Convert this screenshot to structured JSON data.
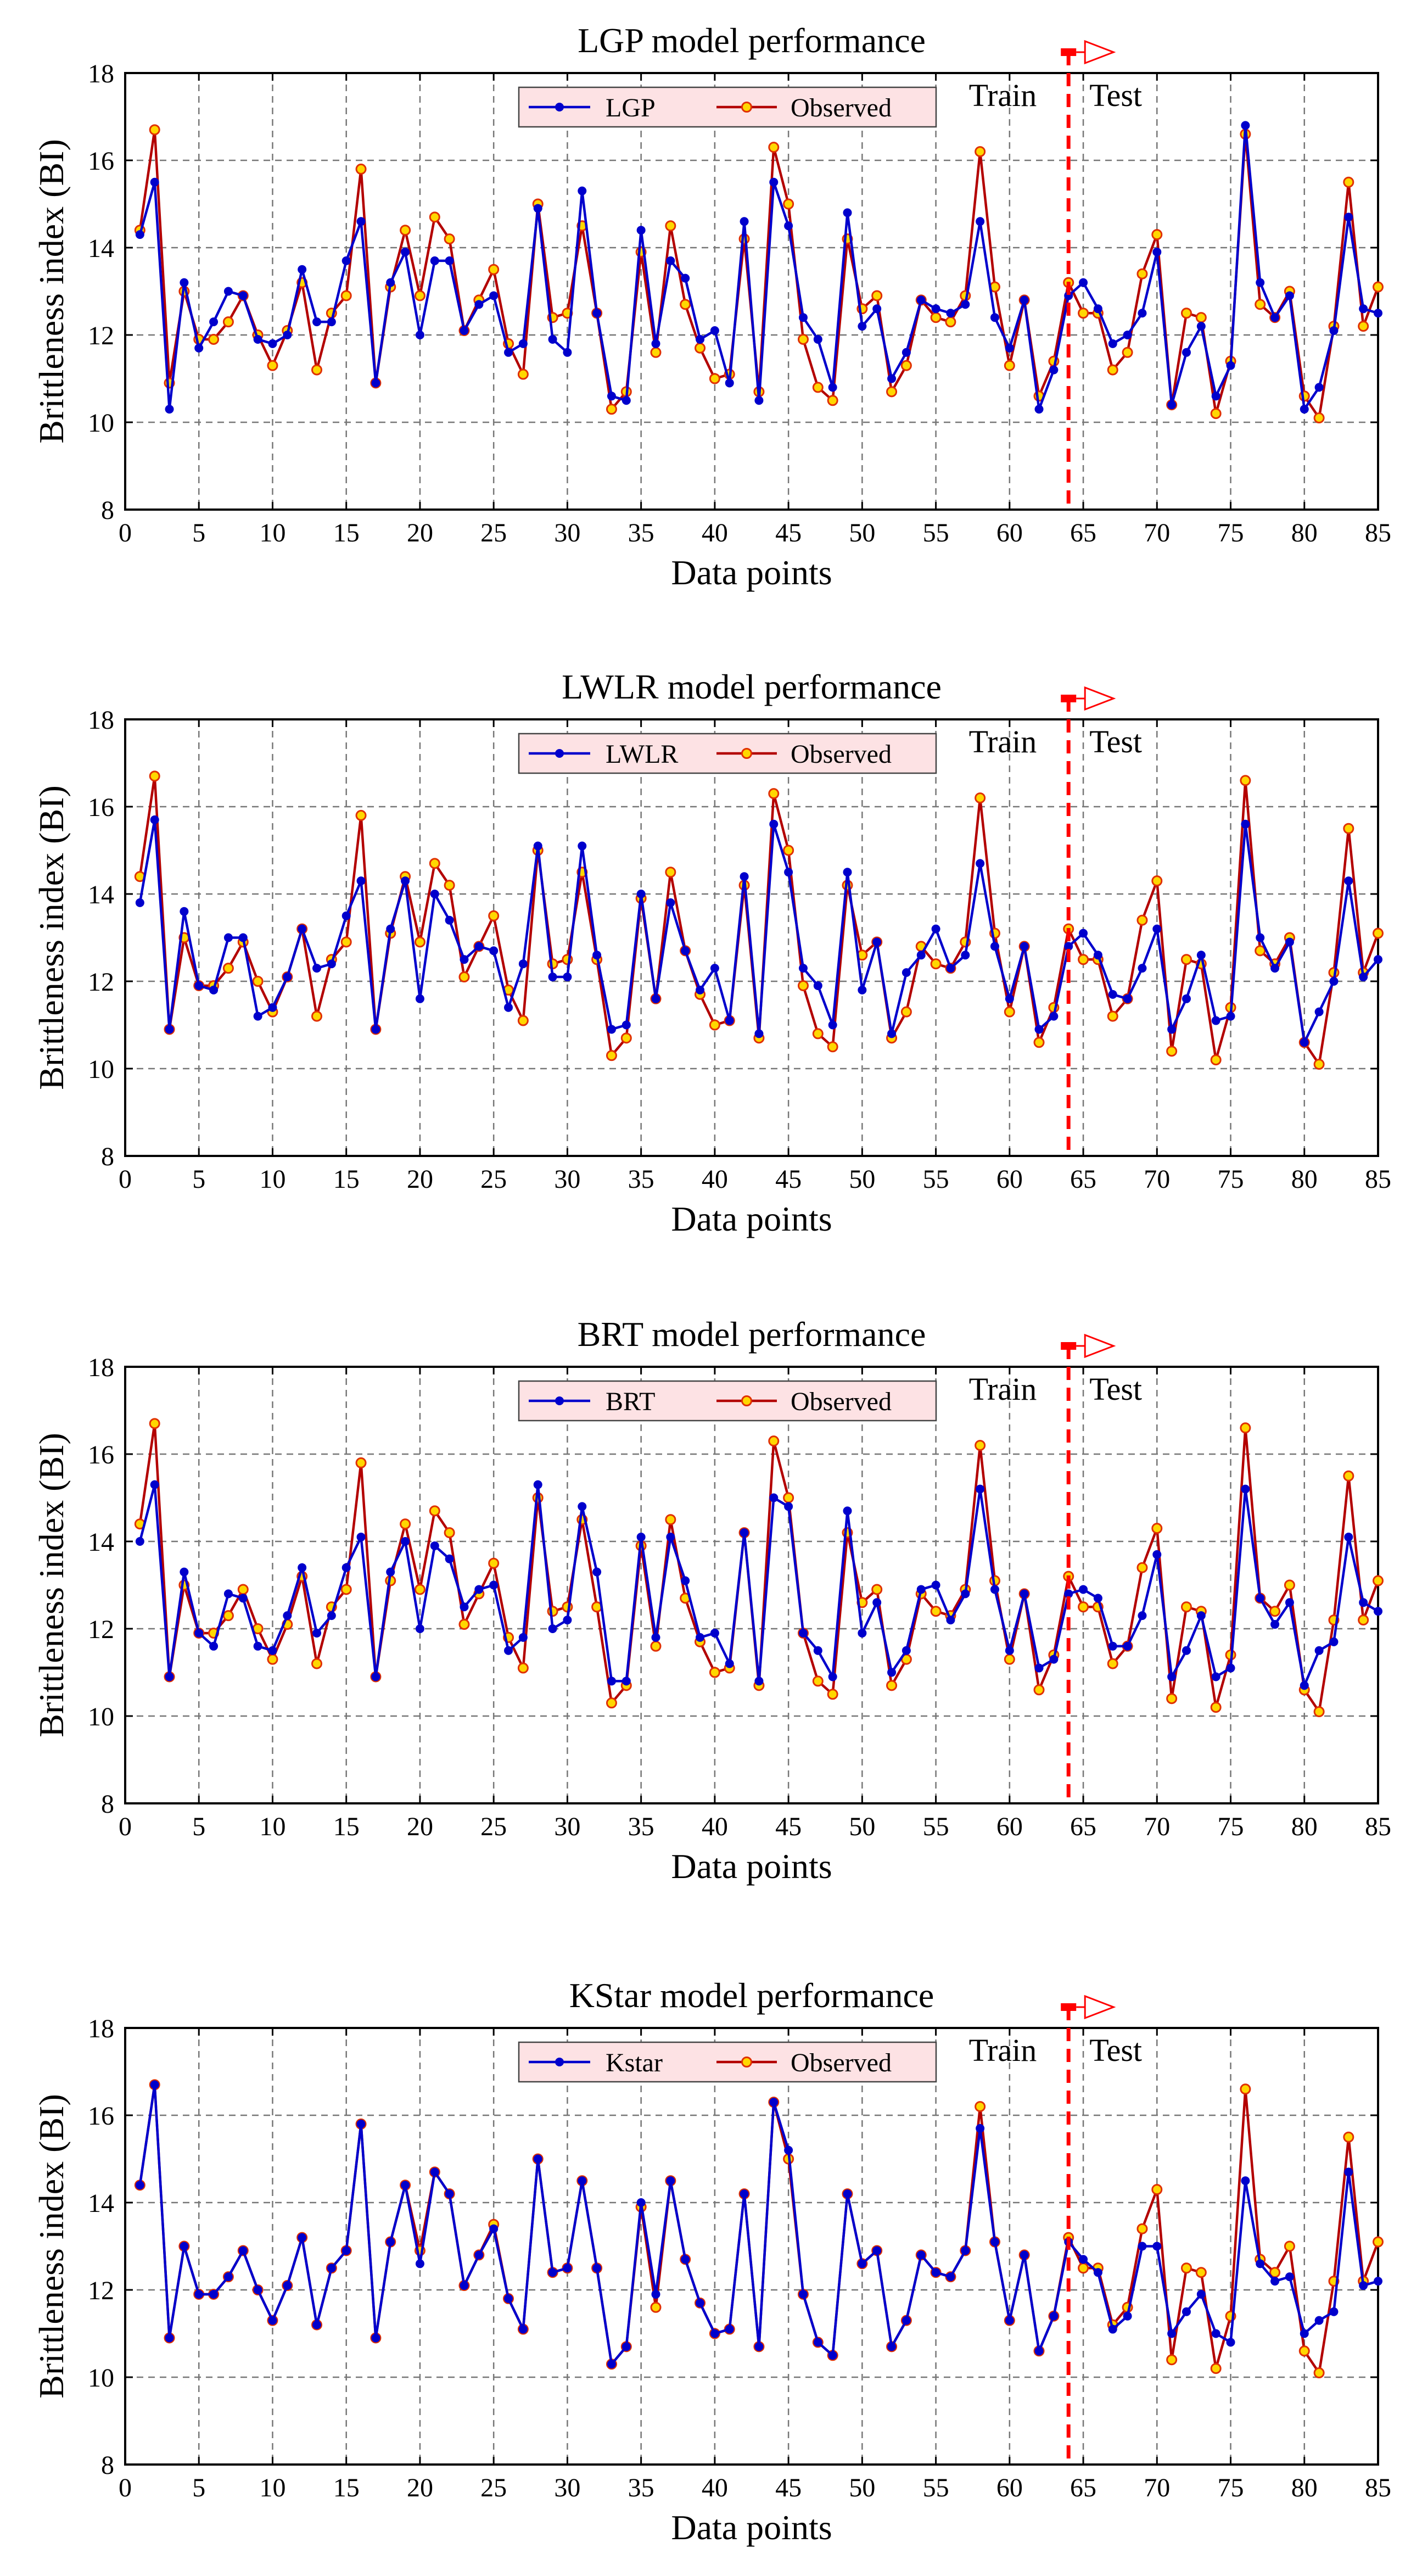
{
  "chart_data": [
    {
      "type": "line",
      "title": "LGP model performance",
      "xlabel": "Data points",
      "ylabel": "Brittleness index (BI)",
      "xlim": [
        0,
        85
      ],
      "ylim": [
        8,
        18
      ],
      "x_ticks": [
        0,
        5,
        10,
        15,
        20,
        25,
        30,
        35,
        40,
        45,
        50,
        55,
        60,
        65,
        70,
        75,
        80,
        85
      ],
      "y_ticks": [
        8,
        10,
        12,
        14,
        16,
        18
      ],
      "grid": true,
      "legend_position": "top-center",
      "split_x": 64,
      "train_label": "Train",
      "test_label": "Test",
      "series": [
        {
          "name": "LGP",
          "color": "#0000cc",
          "values": [
            14.3,
            15.5,
            10.3,
            13.2,
            11.7,
            12.3,
            13.0,
            12.9,
            11.9,
            11.8,
            12.0,
            13.5,
            12.3,
            12.3,
            13.7,
            14.6,
            10.9,
            13.2,
            13.9,
            12.0,
            13.7,
            13.7,
            12.1,
            12.7,
            12.9,
            11.6,
            11.8,
            14.9,
            11.9,
            11.6,
            15.3,
            12.5,
            10.6,
            10.5,
            14.4,
            11.8,
            13.7,
            13.3,
            11.9,
            12.1,
            10.9,
            14.6,
            10.5,
            15.5,
            14.5,
            12.4,
            11.9,
            10.8,
            14.8,
            12.2,
            12.6,
            11.0,
            11.6,
            12.8,
            12.6,
            12.5,
            12.7,
            14.6,
            12.4,
            11.7,
            12.8,
            10.3,
            11.2,
            12.9,
            13.2,
            12.6,
            11.8,
            12.0,
            12.5,
            13.9,
            10.4,
            11.6,
            12.2,
            10.6,
            11.3,
            16.8,
            13.2,
            12.4,
            12.9,
            10.3,
            10.8,
            12.1,
            14.7,
            12.6,
            12.5
          ]
        },
        {
          "name": "Observed",
          "color": "#b30000",
          "values": [
            14.4,
            16.7,
            10.9,
            13.0,
            11.9,
            11.9,
            12.3,
            12.9,
            12.0,
            11.3,
            12.1,
            13.2,
            11.2,
            12.5,
            12.9,
            15.8,
            10.9,
            13.1,
            14.4,
            12.9,
            14.7,
            14.2,
            12.1,
            12.8,
            13.5,
            11.8,
            11.1,
            15.0,
            12.4,
            12.5,
            14.5,
            12.5,
            10.3,
            10.7,
            13.9,
            11.6,
            14.5,
            12.7,
            11.7,
            11.0,
            11.1,
            14.2,
            10.7,
            16.3,
            15.0,
            11.9,
            10.8,
            10.5,
            14.2,
            12.6,
            12.9,
            10.7,
            11.3,
            12.8,
            12.4,
            12.3,
            12.9,
            16.2,
            13.1,
            11.3,
            12.8,
            10.6,
            11.4,
            13.2,
            12.5,
            12.5,
            11.2,
            11.6,
            13.4,
            14.3,
            10.4,
            12.5,
            12.4,
            10.2,
            11.4,
            16.6,
            12.7,
            12.4,
            13.0,
            10.6,
            10.1,
            12.2,
            15.5,
            12.2,
            13.1
          ]
        }
      ]
    },
    {
      "type": "line",
      "title": "LWLR model performance",
      "xlabel": "Data points",
      "ylabel": "Brittleness index (BI)",
      "xlim": [
        0,
        85
      ],
      "ylim": [
        8,
        18
      ],
      "x_ticks": [
        0,
        5,
        10,
        15,
        20,
        25,
        30,
        35,
        40,
        45,
        50,
        55,
        60,
        65,
        70,
        75,
        80,
        85
      ],
      "y_ticks": [
        8,
        10,
        12,
        14,
        16,
        18
      ],
      "grid": true,
      "legend_position": "top-center",
      "split_x": 64,
      "train_label": "Train",
      "test_label": "Test",
      "series": [
        {
          "name": "LWLR",
          "color": "#0000cc",
          "values": [
            13.8,
            15.7,
            10.9,
            13.6,
            11.9,
            11.8,
            13.0,
            13.0,
            11.2,
            11.4,
            12.1,
            13.2,
            12.3,
            12.4,
            13.5,
            14.3,
            10.9,
            13.2,
            14.3,
            11.6,
            14.0,
            13.4,
            12.5,
            12.8,
            12.7,
            11.4,
            12.4,
            15.1,
            12.1,
            12.1,
            15.1,
            12.6,
            10.9,
            11.0,
            14.0,
            11.6,
            13.8,
            12.7,
            11.8,
            12.3,
            11.1,
            14.4,
            10.8,
            15.6,
            14.5,
            12.3,
            11.9,
            11.0,
            14.5,
            11.8,
            12.9,
            10.8,
            12.2,
            12.6,
            13.2,
            12.3,
            12.6,
            14.7,
            12.8,
            11.6,
            12.8,
            10.9,
            11.2,
            12.8,
            13.1,
            12.6,
            11.7,
            11.6,
            12.3,
            13.2,
            10.9,
            11.6,
            12.6,
            11.1,
            11.2,
            15.6,
            13.0,
            12.3,
            12.9,
            10.6,
            11.3,
            12.0,
            14.3,
            12.1,
            12.5
          ]
        },
        {
          "name": "Observed",
          "color": "#b30000",
          "values": [
            14.4,
            16.7,
            10.9,
            13.0,
            11.9,
            11.9,
            12.3,
            12.9,
            12.0,
            11.3,
            12.1,
            13.2,
            11.2,
            12.5,
            12.9,
            15.8,
            10.9,
            13.1,
            14.4,
            12.9,
            14.7,
            14.2,
            12.1,
            12.8,
            13.5,
            11.8,
            11.1,
            15.0,
            12.4,
            12.5,
            14.5,
            12.5,
            10.3,
            10.7,
            13.9,
            11.6,
            14.5,
            12.7,
            11.7,
            11.0,
            11.1,
            14.2,
            10.7,
            16.3,
            15.0,
            11.9,
            10.8,
            10.5,
            14.2,
            12.6,
            12.9,
            10.7,
            11.3,
            12.8,
            12.4,
            12.3,
            12.9,
            16.2,
            13.1,
            11.3,
            12.8,
            10.6,
            11.4,
            13.2,
            12.5,
            12.5,
            11.2,
            11.6,
            13.4,
            14.3,
            10.4,
            12.5,
            12.4,
            10.2,
            11.4,
            16.6,
            12.7,
            12.4,
            13.0,
            10.6,
            10.1,
            12.2,
            15.5,
            12.2,
            13.1
          ]
        }
      ]
    },
    {
      "type": "line",
      "title": "BRT model performance",
      "xlabel": "Data points",
      "ylabel": "Brittleness index (BI)",
      "xlim": [
        0,
        85
      ],
      "ylim": [
        8,
        18
      ],
      "x_ticks": [
        0,
        5,
        10,
        15,
        20,
        25,
        30,
        35,
        40,
        45,
        50,
        55,
        60,
        65,
        70,
        75,
        80,
        85
      ],
      "y_ticks": [
        8,
        10,
        12,
        14,
        16,
        18
      ],
      "grid": true,
      "legend_position": "top-center",
      "split_x": 64,
      "train_label": "Train",
      "test_label": "Test",
      "series": [
        {
          "name": "BRT",
          "color": "#0000cc",
          "values": [
            14.0,
            15.3,
            10.9,
            13.3,
            11.9,
            11.6,
            12.8,
            12.7,
            11.6,
            11.5,
            12.3,
            13.4,
            11.9,
            12.3,
            13.4,
            14.1,
            10.9,
            13.3,
            14.0,
            12.0,
            13.9,
            13.6,
            12.5,
            12.9,
            13.0,
            11.5,
            11.8,
            15.3,
            12.0,
            12.2,
            14.8,
            13.3,
            10.8,
            10.8,
            14.1,
            11.8,
            14.1,
            13.1,
            11.8,
            11.9,
            11.2,
            14.2,
            10.8,
            15.0,
            14.8,
            11.9,
            11.5,
            10.9,
            14.7,
            11.9,
            12.6,
            11.0,
            11.5,
            12.9,
            13.0,
            12.2,
            12.8,
            15.2,
            12.9,
            11.5,
            12.8,
            11.1,
            11.3,
            12.8,
            12.9,
            12.7,
            11.6,
            11.6,
            12.3,
            13.7,
            10.9,
            11.5,
            12.3,
            10.9,
            11.1,
            15.2,
            12.7,
            12.1,
            12.6,
            10.7,
            11.5,
            11.7,
            14.1,
            12.6,
            12.4
          ]
        },
        {
          "name": "Observed",
          "color": "#b30000",
          "values": [
            14.4,
            16.7,
            10.9,
            13.0,
            11.9,
            11.9,
            12.3,
            12.9,
            12.0,
            11.3,
            12.1,
            13.2,
            11.2,
            12.5,
            12.9,
            15.8,
            10.9,
            13.1,
            14.4,
            12.9,
            14.7,
            14.2,
            12.1,
            12.8,
            13.5,
            11.8,
            11.1,
            15.0,
            12.4,
            12.5,
            14.5,
            12.5,
            10.3,
            10.7,
            13.9,
            11.6,
            14.5,
            12.7,
            11.7,
            11.0,
            11.1,
            14.2,
            10.7,
            16.3,
            15.0,
            11.9,
            10.8,
            10.5,
            14.2,
            12.6,
            12.9,
            10.7,
            11.3,
            12.8,
            12.4,
            12.3,
            12.9,
            16.2,
            13.1,
            11.3,
            12.8,
            10.6,
            11.4,
            13.2,
            12.5,
            12.5,
            11.2,
            11.6,
            13.4,
            14.3,
            10.4,
            12.5,
            12.4,
            10.2,
            11.4,
            16.6,
            12.7,
            12.4,
            13.0,
            10.6,
            10.1,
            12.2,
            15.5,
            12.2,
            13.1
          ]
        }
      ]
    },
    {
      "type": "line",
      "title": "KStar model performance",
      "xlabel": "Data points",
      "ylabel": "Brittleness index (BI)",
      "xlim": [
        0,
        85
      ],
      "ylim": [
        8,
        18
      ],
      "x_ticks": [
        0,
        5,
        10,
        15,
        20,
        25,
        30,
        35,
        40,
        45,
        50,
        55,
        60,
        65,
        70,
        75,
        80,
        85
      ],
      "y_ticks": [
        8,
        10,
        12,
        14,
        16,
        18
      ],
      "grid": true,
      "legend_position": "top-center",
      "split_x": 64,
      "train_label": "Train",
      "test_label": "Test",
      "series": [
        {
          "name": "Kstar",
          "color": "#0000cc",
          "values": [
            14.4,
            16.7,
            10.9,
            13.0,
            11.9,
            11.9,
            12.3,
            12.9,
            12.0,
            11.3,
            12.1,
            13.2,
            11.2,
            12.5,
            12.9,
            15.8,
            10.9,
            13.1,
            14.4,
            12.6,
            14.7,
            14.2,
            12.1,
            12.8,
            13.4,
            11.8,
            11.1,
            15.0,
            12.4,
            12.5,
            14.5,
            12.5,
            10.3,
            10.7,
            14.0,
            11.9,
            14.5,
            12.7,
            11.7,
            11.0,
            11.1,
            14.2,
            10.7,
            16.3,
            15.2,
            11.9,
            10.8,
            10.5,
            14.2,
            12.6,
            12.9,
            10.7,
            11.3,
            12.8,
            12.4,
            12.3,
            12.9,
            15.7,
            13.1,
            11.3,
            12.8,
            10.6,
            11.4,
            13.1,
            12.7,
            12.4,
            11.1,
            11.4,
            13.0,
            13.0,
            11.0,
            11.5,
            11.9,
            11.0,
            10.8,
            14.5,
            12.6,
            12.2,
            12.3,
            11.0,
            11.3,
            11.5,
            14.7,
            12.1,
            12.2
          ]
        },
        {
          "name": "Observed",
          "color": "#b30000",
          "values": [
            14.4,
            16.7,
            10.9,
            13.0,
            11.9,
            11.9,
            12.3,
            12.9,
            12.0,
            11.3,
            12.1,
            13.2,
            11.2,
            12.5,
            12.9,
            15.8,
            10.9,
            13.1,
            14.4,
            12.9,
            14.7,
            14.2,
            12.1,
            12.8,
            13.5,
            11.8,
            11.1,
            15.0,
            12.4,
            12.5,
            14.5,
            12.5,
            10.3,
            10.7,
            13.9,
            11.6,
            14.5,
            12.7,
            11.7,
            11.0,
            11.1,
            14.2,
            10.7,
            16.3,
            15.0,
            11.9,
            10.8,
            10.5,
            14.2,
            12.6,
            12.9,
            10.7,
            11.3,
            12.8,
            12.4,
            12.3,
            12.9,
            16.2,
            13.1,
            11.3,
            12.8,
            10.6,
            11.4,
            13.2,
            12.5,
            12.5,
            11.2,
            11.6,
            13.4,
            14.3,
            10.4,
            12.5,
            12.4,
            10.2,
            11.4,
            16.6,
            12.7,
            12.4,
            13.0,
            10.6,
            10.1,
            12.2,
            15.5,
            12.2,
            13.1
          ]
        }
      ]
    }
  ]
}
